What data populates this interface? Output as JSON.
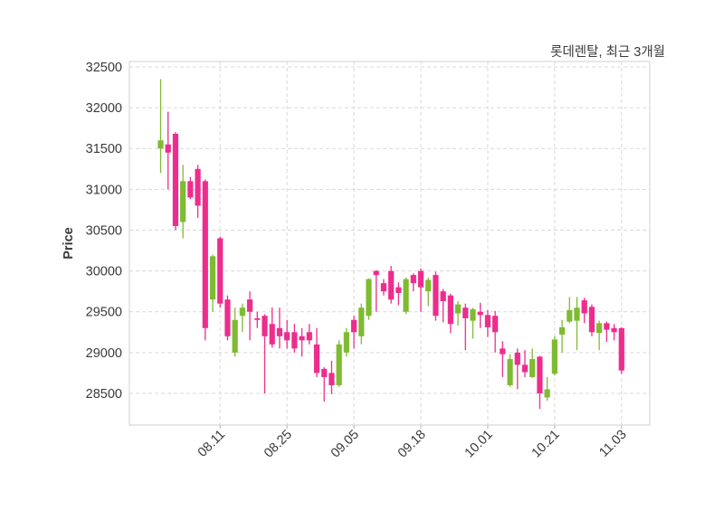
{
  "chart": {
    "title": "롯데렌탈, 최근 3개월",
    "ylabel": "Price"
  },
  "chart_data": {
    "type": "candlestick",
    "title": "롯데렌탈, 최근 3개월",
    "ylabel": "Price",
    "xlabel": "",
    "grid": true,
    "legend": false,
    "ylim": [
      28112,
      32566
    ],
    "xlim": [
      -4.2,
      65.8
    ],
    "y_ticks": [
      28500,
      29000,
      29500,
      30000,
      30500,
      31000,
      31500,
      32000,
      32500
    ],
    "x_ticks": {
      "indices": [
        8,
        17,
        26,
        35,
        44,
        53,
        62
      ],
      "labels": [
        "08.11",
        "08.25",
        "09.05",
        "09.18",
        "10.01",
        "10.21",
        "11.03"
      ]
    },
    "up_color": "#7EBB31",
    "down_color": "#ED2D8D",
    "grid_color": "#d9d9d9",
    "spine_color": "#cfcfcf",
    "tick_color": "#b0b0b0",
    "tick_text_color": "#3a3a3a",
    "candles_format": "[open, high, low, close]",
    "candles": [
      [
        31500,
        32350,
        31200,
        31600
      ],
      [
        31550,
        31950,
        31000,
        31450
      ],
      [
        31680,
        31700,
        30500,
        30550
      ],
      [
        30600,
        31300,
        30400,
        31100
      ],
      [
        31100,
        31150,
        30880,
        30900
      ],
      [
        31250,
        31300,
        30650,
        30800
      ],
      [
        31100,
        31120,
        29150,
        29300
      ],
      [
        29650,
        30200,
        29500,
        30180
      ],
      [
        30400,
        30420,
        29550,
        29600
      ],
      [
        29650,
        29700,
        29150,
        29200
      ],
      [
        29000,
        29550,
        28950,
        29400
      ],
      [
        29450,
        29600,
        29250,
        29550
      ],
      [
        29650,
        29750,
        29150,
        29500
      ],
      [
        29420,
        29500,
        29300,
        29400
      ],
      [
        29450,
        29470,
        28500,
        29200
      ],
      [
        29350,
        29550,
        29060,
        29100
      ],
      [
        29300,
        29550,
        29050,
        29200
      ],
      [
        29250,
        29400,
        29050,
        29150
      ],
      [
        29250,
        29350,
        29000,
        29050
      ],
      [
        29200,
        29300,
        28950,
        29150
      ],
      [
        29250,
        29350,
        29100,
        29150
      ],
      [
        29100,
        29300,
        28700,
        28750
      ],
      [
        28800,
        28820,
        28400,
        28700
      ],
      [
        28750,
        28900,
        28490,
        28600
      ],
      [
        28600,
        29150,
        28580,
        29100
      ],
      [
        29000,
        29300,
        28950,
        29250
      ],
      [
        29400,
        29450,
        29050,
        29250
      ],
      [
        29200,
        29600,
        29100,
        29550
      ],
      [
        29450,
        29910,
        29400,
        29900
      ],
      [
        30000,
        30010,
        29500,
        29950
      ],
      [
        29850,
        29900,
        29700,
        29750
      ],
      [
        30000,
        30060,
        29600,
        29650
      ],
      [
        29800,
        29860,
        29580,
        29730
      ],
      [
        29500,
        29920,
        29470,
        29900
      ],
      [
        29950,
        29970,
        29750,
        29850
      ],
      [
        30000,
        30030,
        29500,
        29800
      ],
      [
        29750,
        29920,
        29570,
        29890
      ],
      [
        29950,
        29990,
        29390,
        29450
      ],
      [
        29750,
        29780,
        29370,
        29630
      ],
      [
        29700,
        29720,
        29240,
        29350
      ],
      [
        29480,
        29630,
        29330,
        29590
      ],
      [
        29550,
        29600,
        29030,
        29420
      ],
      [
        29390,
        29550,
        29170,
        29530
      ],
      [
        29500,
        29610,
        29300,
        29460
      ],
      [
        29460,
        29520,
        29190,
        29310
      ],
      [
        29450,
        29510,
        29000,
        29250
      ],
      [
        29050,
        29140,
        28700,
        28980
      ],
      [
        28600,
        28980,
        28580,
        28920
      ],
      [
        29000,
        29050,
        28550,
        28850
      ],
      [
        28850,
        29030,
        28700,
        28760
      ],
      [
        28700,
        29050,
        28690,
        28920
      ],
      [
        28950,
        28960,
        28310,
        28500
      ],
      [
        28450,
        28700,
        28410,
        28550
      ],
      [
        28740,
        29200,
        28720,
        29160
      ],
      [
        29220,
        29400,
        29000,
        29310
      ],
      [
        29380,
        29680,
        29360,
        29520
      ],
      [
        29390,
        29680,
        29030,
        29550
      ],
      [
        29640,
        29670,
        29360,
        29480
      ],
      [
        29560,
        29590,
        29200,
        29250
      ],
      [
        29240,
        29390,
        29030,
        29360
      ],
      [
        29360,
        29380,
        29130,
        29280
      ],
      [
        29300,
        29350,
        29150,
        29250
      ],
      [
        29300,
        29310,
        28740,
        28780
      ]
    ]
  }
}
